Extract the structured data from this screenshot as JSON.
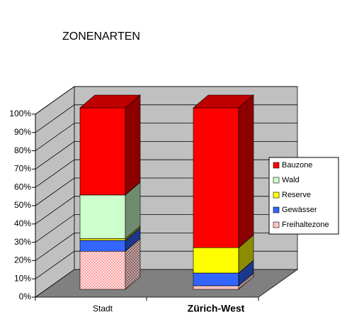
{
  "chart_data": {
    "type": "bar3d_stacked",
    "title": "ZONENARTEN",
    "categories": [
      "Stadt",
      "Zürich-West"
    ],
    "series": [
      {
        "name": "Bauzone",
        "color": "#ff0000",
        "values": [
          48,
          77
        ]
      },
      {
        "name": "Wald",
        "color": "#ccffcc",
        "values": [
          24,
          0
        ]
      },
      {
        "name": "Reserve",
        "color": "#ffff00",
        "values": [
          1,
          14
        ]
      },
      {
        "name": "Gewässer",
        "color": "#3366ff",
        "values": [
          6,
          7
        ]
      },
      {
        "name": "Freihaltezone",
        "color": "#ff9999",
        "values": [
          21,
          2
        ],
        "hatch": true
      }
    ],
    "ylim": [
      0,
      100
    ],
    "yticks": [
      {
        "value": 0,
        "label": "0%"
      },
      {
        "value": 10,
        "label": "10%"
      },
      {
        "value": 20,
        "label": "20%"
      },
      {
        "value": 30,
        "label": "30%"
      },
      {
        "value": 40,
        "label": "40%"
      },
      {
        "value": 50,
        "label": "50%"
      },
      {
        "value": 60,
        "label": "60%"
      },
      {
        "value": 70,
        "label": "70%"
      },
      {
        "value": 80,
        "label": "80%"
      },
      {
        "value": 90,
        "label": "90%"
      },
      {
        "value": 100,
        "label": "100%"
      }
    ],
    "grid": true,
    "legend": "right"
  }
}
